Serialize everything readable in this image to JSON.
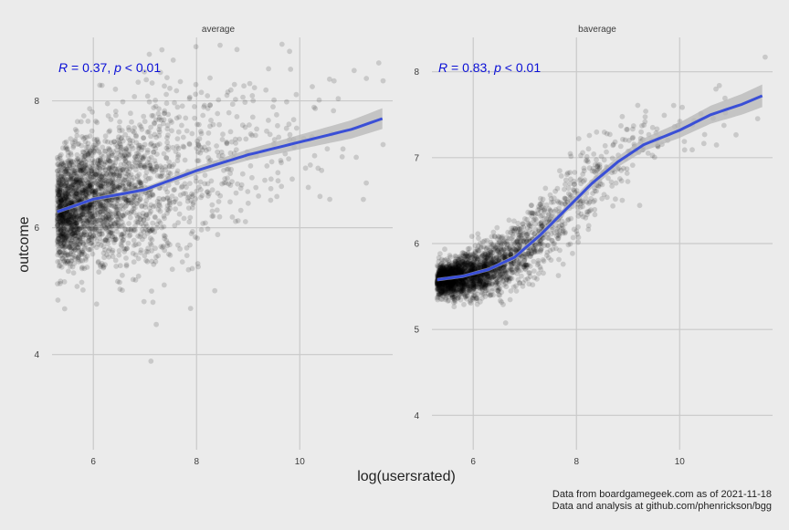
{
  "chart_data": {
    "type": "scatter",
    "xlabel": "log(usersrated)",
    "ylabel": "outcome",
    "caption": [
      "Data from boardgamegeek.com as of 2021-11-18",
      "Data and analysis at github.com/phenrickson/bgg"
    ],
    "x_ticks": [
      6,
      8,
      10
    ],
    "grid": true,
    "panels": [
      {
        "title": "average",
        "annotation": {
          "r_symbol": "R",
          "r_text": " = 0.37, ",
          "p_symbol": "p",
          "p_text": " < 0.01"
        },
        "xlim": [
          5.2,
          11.8
        ],
        "ylim": [
          2.5,
          9.0
        ],
        "y_ticks": [
          4,
          6,
          8
        ],
        "trend": [
          [
            5.3,
            6.25
          ],
          [
            6.0,
            6.45
          ],
          [
            7.0,
            6.6
          ],
          [
            8.0,
            6.9
          ],
          [
            9.0,
            7.15
          ],
          [
            10.0,
            7.35
          ],
          [
            11.0,
            7.55
          ],
          [
            11.6,
            7.72
          ]
        ],
        "scatter_model": {
          "n": 2600,
          "center_x": 5.3,
          "decay": 1.1,
          "spread": 0.75
        }
      },
      {
        "title": "baverage",
        "annotation": {
          "r_symbol": "R",
          "r_text": " = 0.83, ",
          "p_symbol": "p",
          "p_text": " < 0.01"
        },
        "xlim": [
          5.2,
          11.8
        ],
        "ylim": [
          3.6,
          8.4
        ],
        "y_ticks": [
          4,
          5,
          6,
          7,
          8
        ],
        "trend": [
          [
            5.3,
            5.58
          ],
          [
            5.8,
            5.62
          ],
          [
            6.3,
            5.7
          ],
          [
            6.8,
            5.84
          ],
          [
            7.3,
            6.1
          ],
          [
            7.8,
            6.4
          ],
          [
            8.3,
            6.7
          ],
          [
            8.8,
            6.95
          ],
          [
            9.3,
            7.15
          ],
          [
            10.0,
            7.32
          ],
          [
            10.6,
            7.5
          ],
          [
            11.2,
            7.62
          ],
          [
            11.6,
            7.72
          ]
        ],
        "scatter_model": {
          "n": 2600,
          "center_x": 5.3,
          "decay": 1.1,
          "spread": 0.35
        }
      }
    ],
    "colors": {
      "background": "#ebebeb",
      "grid": "#c9c9c9",
      "point": "#000000",
      "trend": "#3a4fd6",
      "band": "#b7b7b7",
      "annotation": "#0a0fd6",
      "text": "#3d3d3d"
    }
  }
}
